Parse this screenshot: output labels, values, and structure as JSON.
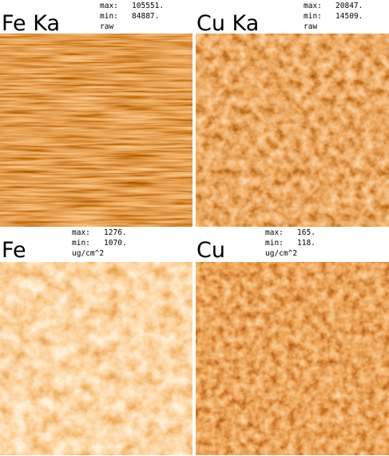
{
  "panels": [
    {
      "label": "Fe  Ka",
      "lines": [
        "max:   105551.",
        "min:   84887.",
        "raw"
      ]
    },
    {
      "label": "Cu  Ka",
      "lines": [
        "max:   20847.",
        "min:   14509.",
        "raw"
      ]
    },
    {
      "label": "Fe",
      "lines": [
        "max:   1276.",
        "min:   1070.",
        "ug/cm^2"
      ]
    },
    {
      "label": "Cu",
      "lines": [
        "max:   165.",
        "min:   118.",
        "ug/cm^2"
      ]
    }
  ]
}
